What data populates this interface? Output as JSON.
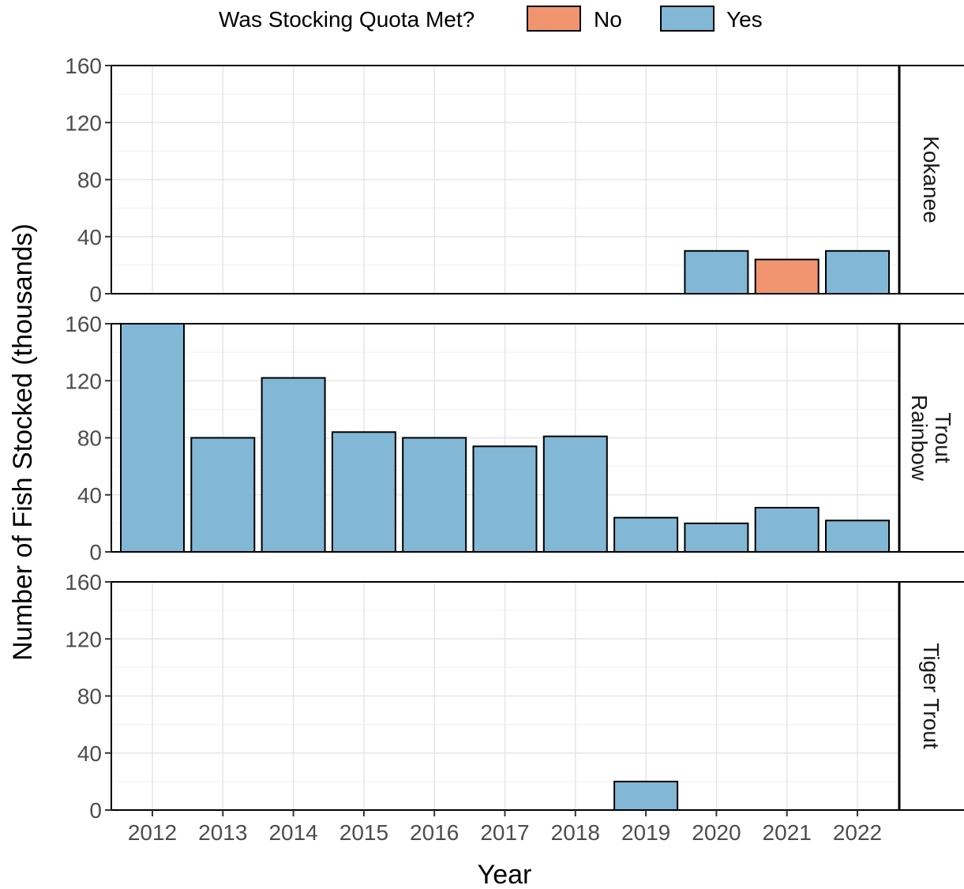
{
  "chart_data": {
    "type": "bar",
    "xlabel": "Year",
    "ylabel": "Number of Fish Stocked (thousands)",
    "ylim": [
      0,
      160
    ],
    "yticks": [
      "0",
      "40",
      "80",
      "120",
      "160"
    ],
    "categories": [
      "2012",
      "2013",
      "2014",
      "2015",
      "2016",
      "2017",
      "2018",
      "2019",
      "2020",
      "2021",
      "2022"
    ],
    "legend": {
      "title": "Was Stocking Quota Met?",
      "position": "top",
      "items": [
        {
          "label": "No",
          "color": "#f0956f"
        },
        {
          "label": "Yes",
          "color": "#82b7d6"
        }
      ]
    },
    "facets": [
      {
        "label": [
          "Kokanee"
        ],
        "bars": [
          {
            "year": "2020",
            "value": 30,
            "quota_met": "Yes"
          },
          {
            "year": "2021",
            "value": 24,
            "quota_met": "No"
          },
          {
            "year": "2022",
            "value": 30,
            "quota_met": "Yes"
          }
        ]
      },
      {
        "label": [
          "Rainbow",
          "Trout"
        ],
        "bars": [
          {
            "year": "2012",
            "value": 160,
            "quota_met": "Yes"
          },
          {
            "year": "2013",
            "value": 80,
            "quota_met": "Yes"
          },
          {
            "year": "2014",
            "value": 122,
            "quota_met": "Yes"
          },
          {
            "year": "2015",
            "value": 84,
            "quota_met": "Yes"
          },
          {
            "year": "2016",
            "value": 80,
            "quota_met": "Yes"
          },
          {
            "year": "2017",
            "value": 74,
            "quota_met": "Yes"
          },
          {
            "year": "2018",
            "value": 81,
            "quota_met": "Yes"
          },
          {
            "year": "2019",
            "value": 24,
            "quota_met": "Yes"
          },
          {
            "year": "2020",
            "value": 20,
            "quota_met": "Yes"
          },
          {
            "year": "2021",
            "value": 31,
            "quota_met": "Yes"
          },
          {
            "year": "2022",
            "value": 22,
            "quota_met": "Yes"
          }
        ]
      },
      {
        "label": [
          "Tiger Trout"
        ],
        "bars": [
          {
            "year": "2019",
            "value": 20,
            "quota_met": "Yes"
          }
        ]
      }
    ],
    "grid": true
  }
}
